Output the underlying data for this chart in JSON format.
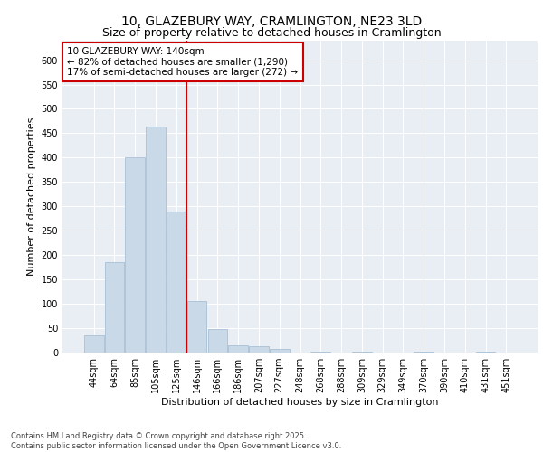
{
  "title_line1": "10, GLAZEBURY WAY, CRAMLINGTON, NE23 3LD",
  "title_line2": "Size of property relative to detached houses in Cramlington",
  "xlabel": "Distribution of detached houses by size in Cramlington",
  "ylabel": "Number of detached properties",
  "bar_color": "#c9d9e8",
  "bar_edge_color": "#a0b8d0",
  "categories": [
    "44sqm",
    "64sqm",
    "85sqm",
    "105sqm",
    "125sqm",
    "146sqm",
    "166sqm",
    "186sqm",
    "207sqm",
    "227sqm",
    "248sqm",
    "268sqm",
    "288sqm",
    "309sqm",
    "329sqm",
    "349sqm",
    "370sqm",
    "390sqm",
    "410sqm",
    "431sqm",
    "451sqm"
  ],
  "values": [
    35,
    185,
    400,
    463,
    290,
    105,
    48,
    15,
    13,
    7,
    0,
    1,
    0,
    1,
    0,
    0,
    1,
    0,
    0,
    1,
    0
  ],
  "ylim": [
    0,
    640
  ],
  "yticks": [
    0,
    50,
    100,
    150,
    200,
    250,
    300,
    350,
    400,
    450,
    500,
    550,
    600
  ],
  "vline_x": 4.5,
  "vline_color": "#cc0000",
  "annotation_text": "10 GLAZEBURY WAY: 140sqm\n← 82% of detached houses are smaller (1,290)\n17% of semi-detached houses are larger (272) →",
  "annotation_box_color": "#cc0000",
  "bg_color": "#e8eef4",
  "grid_color": "#ffffff",
  "footnote": "Contains HM Land Registry data © Crown copyright and database right 2025.\nContains public sector information licensed under the Open Government Licence v3.0.",
  "title_fontsize": 10,
  "subtitle_fontsize": 9,
  "axis_label_fontsize": 8,
  "tick_fontsize": 7,
  "annotation_fontsize": 7.5,
  "footnote_fontsize": 6
}
